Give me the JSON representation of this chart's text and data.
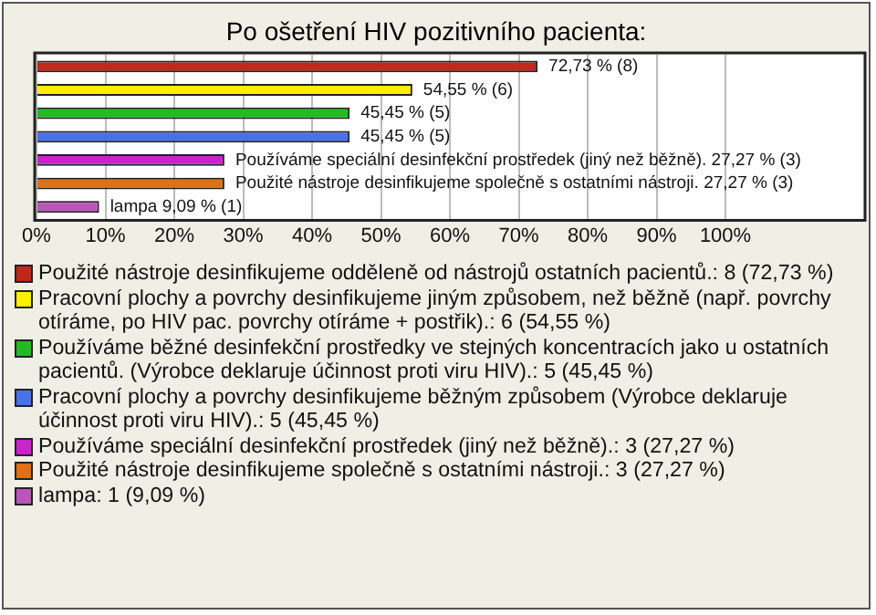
{
  "chart_data": {
    "type": "bar",
    "orientation": "horizontal",
    "title": "Po ošetření HIV pozitivního pacienta:",
    "categories": [
      null,
      null,
      null,
      null,
      null,
      null,
      null
    ],
    "series": [
      {
        "name": "Použité nástroje desinfikujeme odděleně od nástrojů ostatních pacientů.: 8 (72,73 %)",
        "color": "#c0281c",
        "values": [
          72.73,
          null,
          null,
          null,
          null,
          null,
          null
        ],
        "value_labels": [
          "72,73 % (8)",
          null,
          null,
          null,
          null,
          null,
          null
        ]
      },
      {
        "name": "Pracovní plochy a povrchy desinfikujeme jiným způsobem, než běžně (např. povrchy otíráme, po HIV pac. povrchy otíráme + postřik).: 6 (54,55 %)",
        "color": "#ffee00",
        "values": [
          null,
          54.55,
          null,
          null,
          null,
          null,
          null
        ],
        "value_labels": [
          null,
          "54,55 % (6)",
          null,
          null,
          null,
          null,
          null
        ]
      },
      {
        "name": "Používáme běžné desinfekční prostředky ve stejných koncentracích jako u ostatních pacientů. (Výrobce deklaruje účinnost proti viru HIV).: 5 (45,45 %)",
        "color": "#22bb22",
        "values": [
          null,
          null,
          45.45,
          null,
          null,
          null,
          null
        ],
        "value_labels": [
          null,
          null,
          "45,45 % (5)",
          null,
          null,
          null,
          null
        ]
      },
      {
        "name": "Pracovní plochy a povrchy desinfikujeme běžným způsobem (Výrobce deklaruje účinnost proti viru HIV).: 5 (45,45 %)",
        "color": "#4a72e8",
        "values": [
          null,
          null,
          null,
          45.45,
          null,
          null,
          null
        ],
        "value_labels": [
          null,
          null,
          null,
          "45,45 % (5)",
          null,
          null,
          null
        ]
      },
      {
        "name": "Používáme speciální desinfekční prostředek (jiný než běžně).: 3 (27,27 %)",
        "color": "#cc22cc",
        "values": [
          null,
          null,
          null,
          null,
          27.27,
          null,
          null
        ],
        "value_labels": [
          null,
          null,
          null,
          null,
          "Používáme speciální desinfekční prostředek (jiný než běžně). 27,27 % (3)",
          null,
          null
        ]
      },
      {
        "name": "Použité nástroje desinfikujeme společně s ostatními nástroji.: 3 (27,27 %)",
        "color": "#e07010",
        "values": [
          null,
          null,
          null,
          null,
          null,
          27.27,
          null
        ],
        "value_labels": [
          null,
          null,
          null,
          null,
          null,
          "Použité nástroje desinfikujeme společně s ostatními nástroji. 27,27 % (3)",
          null
        ]
      },
      {
        "name": "lampa: 1 (9,09 %)",
        "color": "#bb55bb",
        "values": [
          null,
          null,
          null,
          null,
          null,
          null,
          9.09
        ],
        "value_labels": [
          null,
          null,
          null,
          null,
          null,
          null,
          "lampa 9,09 % (1)"
        ]
      }
    ],
    "xlim": [
      0,
      120
    ],
    "xticks": [
      {
        "value": 0,
        "label": "0%"
      },
      {
        "value": 10,
        "label": "10%"
      },
      {
        "value": 20,
        "label": "20%"
      },
      {
        "value": 30,
        "label": "30%"
      },
      {
        "value": 40,
        "label": "40%"
      },
      {
        "value": 50,
        "label": "50%"
      },
      {
        "value": 60,
        "label": "60%"
      },
      {
        "value": 70,
        "label": "70%"
      },
      {
        "value": 80,
        "label": "80%"
      },
      {
        "value": 90,
        "label": "90%"
      },
      {
        "value": 100,
        "label": "100%"
      }
    ],
    "grid": "x",
    "tick_labels": "x",
    "legend": "bottom"
  }
}
